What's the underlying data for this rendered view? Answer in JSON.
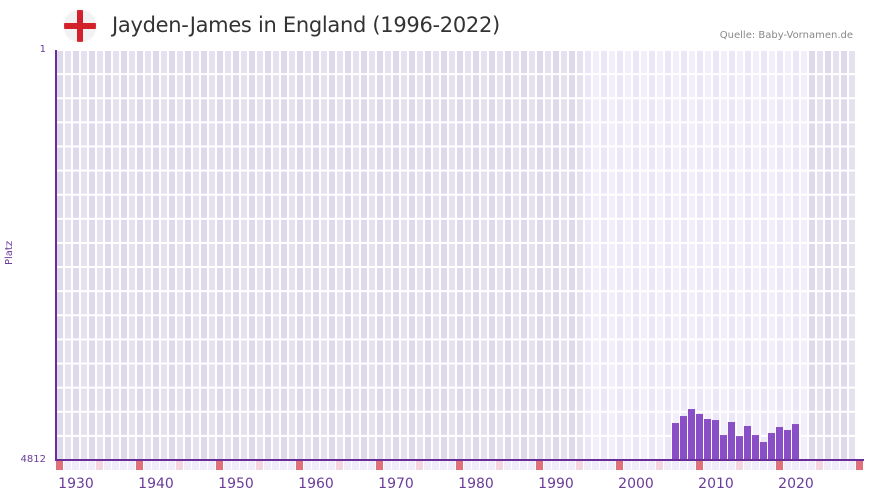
{
  "header": {
    "title": "Jayden-James in England (1996-2022)",
    "source": "Quelle: Baby-Vornamen.de",
    "flag_icon": "england-flag-icon"
  },
  "axes": {
    "ylabel": "Platz",
    "ytick_top": "1",
    "ytick_bottom": "4812"
  },
  "colors": {
    "bar": "#8a4fc6",
    "axis": "#6a2e9a",
    "bg_outside": "#e3dfee",
    "bg_range": "#f0ecfa",
    "marker_decade": "#e0707a",
    "marker_half": "#f5d6e0",
    "marker_other": "#f0ecfa"
  },
  "chart_data": {
    "type": "bar",
    "title": "Jayden-James in England (1996-2022)",
    "xlabel": "",
    "ylabel": "Platz",
    "ylim": [
      4812,
      1
    ],
    "y_inverted": true,
    "xlim": [
      1928,
      2028
    ],
    "highlight_range": [
      1994,
      2021
    ],
    "xticks": [
      1930,
      1940,
      1950,
      1960,
      1970,
      1980,
      1990,
      2000,
      2010,
      2020
    ],
    "categories": [
      2005,
      2006,
      2007,
      2008,
      2009,
      2010,
      2011,
      2012,
      2013,
      2014,
      2015,
      2016,
      2017,
      2018,
      2019,
      2020
    ],
    "values": [
      4378,
      4296,
      4214,
      4272,
      4331,
      4343,
      4519,
      4366,
      4531,
      4413,
      4519,
      4601,
      4495,
      4425,
      4460,
      4390
    ],
    "grid": true,
    "legend": null,
    "source": "Quelle: Baby-Vornamen.de"
  }
}
